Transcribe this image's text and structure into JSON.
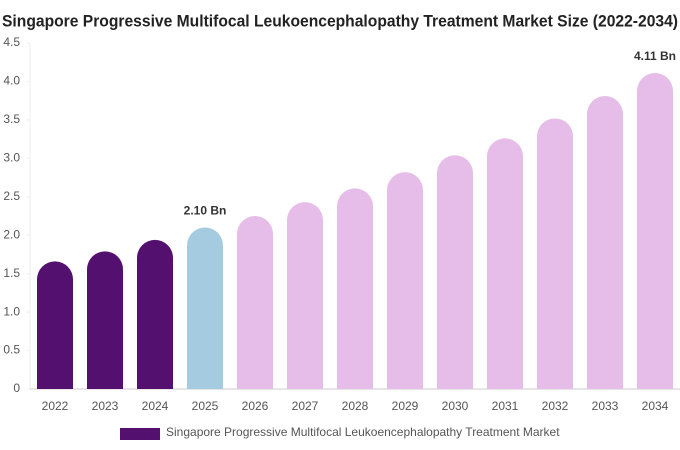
{
  "chart_data": {
    "type": "bar",
    "title": "Singapore Progressive Multifocal Leukoencephalopathy Treatment Market Size (2022-2034)",
    "categories": [
      "2022",
      "2023",
      "2024",
      "2025",
      "2026",
      "2027",
      "2028",
      "2029",
      "2030",
      "2031",
      "2032",
      "2033",
      "2034"
    ],
    "series": [
      {
        "name": "Singapore Progressive Multifocal Leukoencephalopathy Treatment Market",
        "color": "#54106e",
        "values": [
          1.66,
          1.79,
          1.94,
          2.1,
          2.25,
          2.43,
          2.61,
          2.82,
          3.04,
          3.26,
          3.52,
          3.81,
          4.11
        ],
        "value_labels": [
          null,
          null,
          null,
          "2.10 Bn",
          null,
          null,
          null,
          null,
          null,
          null,
          null,
          null,
          "4.11 Bn"
        ],
        "colors": [
          "#54106e",
          "#54106e",
          "#54106e",
          "#a4cbe0",
          "#e6bde8",
          "#e6bde8",
          "#e6bde8",
          "#e6bde8",
          "#e6bde8",
          "#e6bde8",
          "#e6bde8",
          "#e6bde8",
          "#e6bde8"
        ]
      }
    ],
    "ylim": [
      0,
      4.5
    ],
    "yticks": [
      0,
      0.5,
      {
        "value": 1,
        "label": "1.0"
      },
      1.5,
      {
        "value": 2,
        "label": "2.0"
      },
      2.5,
      {
        "value": 3,
        "label": "3.0"
      },
      3.5,
      {
        "value": 4,
        "label": "4.0"
      },
      4.5
    ],
    "grid": false
  }
}
